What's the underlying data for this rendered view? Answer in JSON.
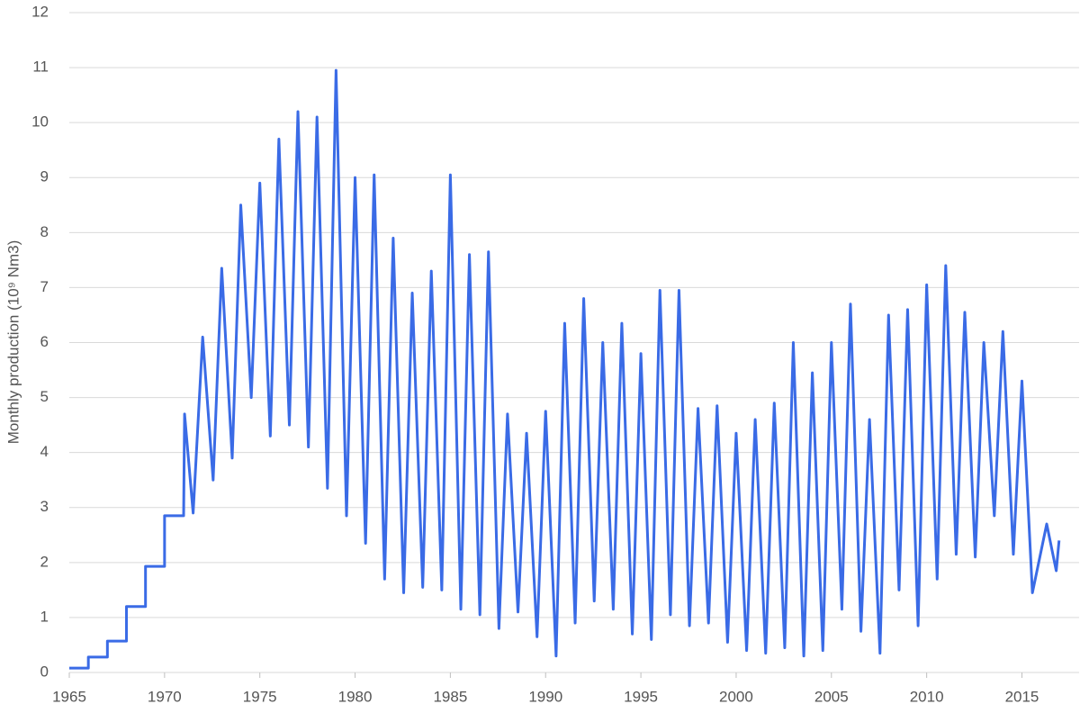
{
  "chart_data": {
    "type": "line",
    "ylabel": "Monthly production (10⁹ Nm3)",
    "color": "#3a6be6",
    "grid": true,
    "xlim": [
      1965,
      2018
    ],
    "xticks": [
      1965,
      1970,
      1975,
      1980,
      1985,
      1990,
      1995,
      2000,
      2005,
      2010,
      2015
    ],
    "ylim": [
      0,
      12
    ],
    "yticks": [
      0,
      1,
      2,
      3,
      4,
      5,
      6,
      7,
      8,
      9,
      10,
      11,
      12
    ],
    "x": [
      1965,
      1966,
      1966,
      1967,
      1967,
      1968,
      1968,
      1969,
      1969,
      1970,
      1970,
      1971,
      1971.05,
      1971.5,
      1972,
      1972.55,
      1973,
      1973.55,
      1974,
      1974.55,
      1975,
      1975.55,
      1976,
      1976.55,
      1977,
      1977.55,
      1978,
      1978.55,
      1979,
      1979.55,
      1980,
      1980.55,
      1981,
      1981.55,
      1982,
      1982.55,
      1983,
      1983.55,
      1984,
      1984.55,
      1985,
      1985.55,
      1986,
      1986.55,
      1987,
      1987.55,
      1988,
      1988.55,
      1989,
      1989.55,
      1990,
      1990.55,
      1991,
      1991.55,
      1992,
      1992.55,
      1993,
      1993.55,
      1994,
      1994.55,
      1995,
      1995.55,
      1996,
      1996.55,
      1997,
      1997.55,
      1998,
      1998.55,
      1999,
      1999.55,
      2000,
      2000.55,
      2001,
      2001.55,
      2002,
      2002.55,
      2003,
      2003.55,
      2004,
      2004.55,
      2005,
      2005.55,
      2006,
      2006.55,
      2007,
      2007.55,
      2008,
      2008.55,
      2009,
      2009.55,
      2010,
      2010.55,
      2011,
      2011.55,
      2012,
      2012.55,
      2013,
      2013.55,
      2014,
      2014.55,
      2015,
      2015.55,
      2016.3,
      2016.8,
      2016.95
    ],
    "values": [
      0.08,
      0.08,
      0.28,
      0.28,
      0.57,
      0.57,
      1.2,
      1.2,
      1.93,
      1.93,
      2.85,
      2.85,
      4.7,
      2.9,
      6.1,
      3.5,
      7.35,
      3.9,
      8.5,
      5.0,
      8.9,
      4.3,
      9.7,
      4.5,
      10.2,
      4.1,
      10.1,
      3.35,
      10.95,
      2.85,
      9.0,
      2.35,
      9.05,
      1.7,
      7.9,
      1.45,
      6.9,
      1.55,
      7.3,
      1.5,
      9.05,
      1.15,
      7.6,
      1.05,
      7.65,
      0.8,
      4.7,
      1.1,
      4.35,
      0.65,
      4.75,
      0.3,
      6.35,
      0.9,
      6.8,
      1.3,
      6.0,
      1.15,
      6.35,
      0.7,
      5.8,
      0.6,
      6.95,
      1.05,
      6.95,
      0.85,
      4.8,
      0.9,
      4.85,
      0.55,
      4.35,
      0.4,
      4.6,
      0.35,
      4.9,
      0.45,
      6.0,
      0.3,
      5.45,
      0.4,
      6.0,
      1.15,
      6.7,
      0.75,
      4.6,
      0.35,
      6.5,
      1.5,
      6.6,
      0.85,
      7.05,
      1.7,
      7.4,
      2.15,
      6.55,
      2.1,
      6.0,
      2.85,
      6.2,
      2.15,
      5.3,
      1.45,
      2.7,
      1.85,
      2.4
    ]
  }
}
